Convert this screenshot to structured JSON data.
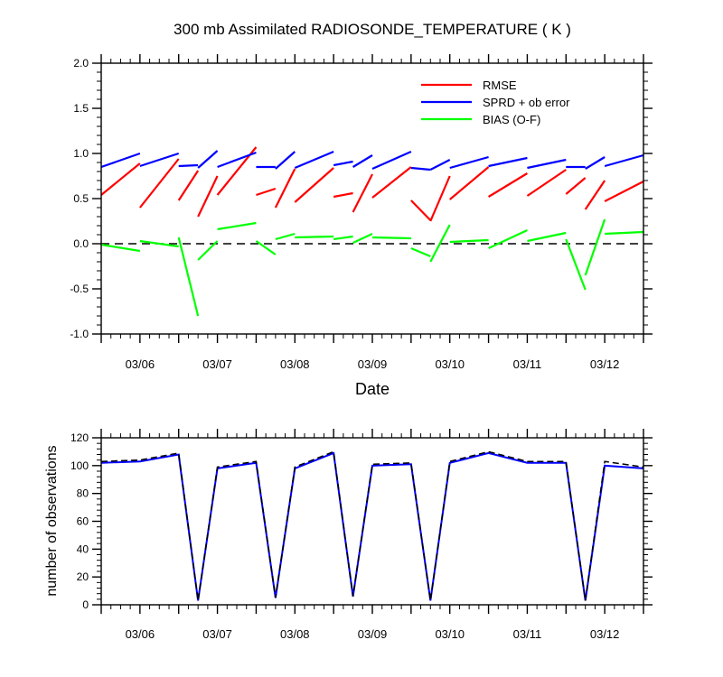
{
  "chart_data": [
    {
      "type": "line",
      "title": "300 mb Assimilated RADIOSONDE_TEMPERATURE ( K )",
      "xlabel": "Date",
      "ylabel": "",
      "xlim": [
        "03/05 12Z",
        "03/12 12Z"
      ],
      "ylim": [
        -1.0,
        2.0
      ],
      "yticks": [
        2.0,
        1.5,
        1.0,
        0.5,
        0.0,
        -0.5,
        -1.0
      ],
      "ytick_labels": [
        "2.0",
        "1.5",
        "1.0",
        "0.5",
        "0.0",
        "-0.5",
        "-1.0"
      ],
      "xtick_labels": [
        "03/06",
        "03/07",
        "03/08",
        "03/09",
        "03/10",
        "03/11",
        "03/12"
      ],
      "zero_line": {
        "y": 0.0,
        "style": "dashed",
        "color": "#000000"
      },
      "legend_position": "top-right",
      "series": [
        {
          "name": "RMSE",
          "color": "#ff0000",
          "segments": [
            {
              "x": [
                "03/05 12Z",
                "03/06 00Z"
              ],
              "y": [
                0.54,
                0.89
              ]
            },
            {
              "x": [
                "03/06 00Z",
                "03/06 12Z"
              ],
              "y": [
                0.4,
                0.94
              ]
            },
            {
              "x": [
                "03/06 12Z",
                "03/06 18Z"
              ],
              "y": [
                0.48,
                0.81
              ]
            },
            {
              "x": [
                "03/06 18Z",
                "03/07 00Z"
              ],
              "y": [
                0.3,
                0.75
              ]
            },
            {
              "x": [
                "03/07 00Z",
                "03/07 12Z"
              ],
              "y": [
                0.54,
                1.07
              ]
            },
            {
              "x": [
                "03/07 12Z",
                "03/07 18Z"
              ],
              "y": [
                0.54,
                0.61
              ]
            },
            {
              "x": [
                "03/07 18Z",
                "03/08 00Z"
              ],
              "y": [
                0.4,
                0.83
              ]
            },
            {
              "x": [
                "03/08 00Z",
                "03/08 12Z"
              ],
              "y": [
                0.46,
                0.84
              ]
            },
            {
              "x": [
                "03/08 12Z",
                "03/08 18Z"
              ],
              "y": [
                0.52,
                0.56
              ]
            },
            {
              "x": [
                "03/08 18Z",
                "03/09 00Z"
              ],
              "y": [
                0.35,
                0.77
              ]
            },
            {
              "x": [
                "03/09 00Z",
                "03/09 12Z"
              ],
              "y": [
                0.51,
                0.85
              ]
            },
            {
              "x": [
                "03/09 12Z",
                "03/09 18Z"
              ],
              "y": [
                0.48,
                0.26
              ]
            },
            {
              "x": [
                "03/09 18Z",
                "03/10 00Z"
              ],
              "y": [
                0.25,
                0.75
              ]
            },
            {
              "x": [
                "03/10 00Z",
                "03/10 12Z"
              ],
              "y": [
                0.49,
                0.85
              ]
            },
            {
              "x": [
                "03/10 12Z",
                "03/11 00Z"
              ],
              "y": [
                0.52,
                0.78
              ]
            },
            {
              "x": [
                "03/11 00Z",
                "03/11 12Z"
              ],
              "y": [
                0.53,
                0.82
              ]
            },
            {
              "x": [
                "03/11 12Z",
                "03/11 18Z"
              ],
              "y": [
                0.55,
                0.73
              ]
            },
            {
              "x": [
                "03/11 18Z",
                "03/12 00Z"
              ],
              "y": [
                0.38,
                0.7
              ]
            },
            {
              "x": [
                "03/12 00Z",
                "03/12 12Z"
              ],
              "y": [
                0.47,
                0.69
              ]
            }
          ]
        },
        {
          "name": "SPRD + ob error",
          "color": "#0000ff",
          "segments": [
            {
              "x": [
                "03/05 12Z",
                "03/06 00Z"
              ],
              "y": [
                0.85,
                1.0
              ]
            },
            {
              "x": [
                "03/06 00Z",
                "03/06 12Z"
              ],
              "y": [
                0.86,
                1.0
              ]
            },
            {
              "x": [
                "03/06 12Z",
                "03/06 18Z"
              ],
              "y": [
                0.86,
                0.87
              ]
            },
            {
              "x": [
                "03/06 18Z",
                "03/07 00Z"
              ],
              "y": [
                0.84,
                1.03
              ]
            },
            {
              "x": [
                "03/07 00Z",
                "03/07 12Z"
              ],
              "y": [
                0.85,
                1.01
              ]
            },
            {
              "x": [
                "03/07 12Z",
                "03/07 18Z"
              ],
              "y": [
                0.85,
                0.85
              ]
            },
            {
              "x": [
                "03/07 18Z",
                "03/08 00Z"
              ],
              "y": [
                0.83,
                1.02
              ]
            },
            {
              "x": [
                "03/08 00Z",
                "03/08 12Z"
              ],
              "y": [
                0.84,
                1.02
              ]
            },
            {
              "x": [
                "03/08 12Z",
                "03/08 18Z"
              ],
              "y": [
                0.87,
                0.91
              ]
            },
            {
              "x": [
                "03/08 18Z",
                "03/09 00Z"
              ],
              "y": [
                0.85,
                0.98
              ]
            },
            {
              "x": [
                "03/09 00Z",
                "03/09 12Z"
              ],
              "y": [
                0.83,
                1.02
              ]
            },
            {
              "x": [
                "03/09 12Z",
                "03/09 18Z"
              ],
              "y": [
                0.84,
                0.82
              ]
            },
            {
              "x": [
                "03/09 18Z",
                "03/10 00Z"
              ],
              "y": [
                0.82,
                0.93
              ]
            },
            {
              "x": [
                "03/10 00Z",
                "03/10 12Z"
              ],
              "y": [
                0.84,
                0.96
              ]
            },
            {
              "x": [
                "03/10 12Z",
                "03/11 00Z"
              ],
              "y": [
                0.86,
                0.95
              ]
            },
            {
              "x": [
                "03/11 00Z",
                "03/11 12Z"
              ],
              "y": [
                0.84,
                0.93
              ]
            },
            {
              "x": [
                "03/11 12Z",
                "03/11 18Z"
              ],
              "y": [
                0.85,
                0.85
              ]
            },
            {
              "x": [
                "03/11 18Z",
                "03/12 00Z"
              ],
              "y": [
                0.83,
                0.96
              ]
            },
            {
              "x": [
                "03/12 00Z",
                "03/12 12Z"
              ],
              "y": [
                0.86,
                0.98
              ]
            }
          ]
        },
        {
          "name": "BIAS (O-F)",
          "color": "#00ff00",
          "segments": [
            {
              "x": [
                "03/05 12Z",
                "03/06 00Z"
              ],
              "y": [
                -0.01,
                -0.08
              ]
            },
            {
              "x": [
                "03/06 00Z",
                "03/06 12Z"
              ],
              "y": [
                0.03,
                -0.03
              ]
            },
            {
              "x": [
                "03/06 12Z",
                "03/06 18Z"
              ],
              "y": [
                0.07,
                -0.8
              ]
            },
            {
              "x": [
                "03/06 18Z",
                "03/07 00Z"
              ],
              "y": [
                -0.18,
                0.03
              ]
            },
            {
              "x": [
                "03/07 00Z",
                "03/07 12Z"
              ],
              "y": [
                0.16,
                0.23
              ]
            },
            {
              "x": [
                "03/07 12Z",
                "03/07 18Z"
              ],
              "y": [
                0.03,
                -0.12
              ]
            },
            {
              "x": [
                "03/07 18Z",
                "03/08 00Z"
              ],
              "y": [
                0.05,
                0.11
              ]
            },
            {
              "x": [
                "03/08 00Z",
                "03/08 12Z"
              ],
              "y": [
                0.07,
                0.08
              ]
            },
            {
              "x": [
                "03/08 12Z",
                "03/08 18Z"
              ],
              "y": [
                0.05,
                0.08
              ]
            },
            {
              "x": [
                "03/08 18Z",
                "03/09 00Z"
              ],
              "y": [
                0.01,
                0.11
              ]
            },
            {
              "x": [
                "03/09 00Z",
                "03/09 12Z"
              ],
              "y": [
                0.07,
                0.06
              ]
            },
            {
              "x": [
                "03/09 12Z",
                "03/09 18Z"
              ],
              "y": [
                -0.05,
                -0.14
              ]
            },
            {
              "x": [
                "03/09 18Z",
                "03/10 00Z"
              ],
              "y": [
                -0.2,
                0.21
              ]
            },
            {
              "x": [
                "03/10 00Z",
                "03/10 12Z"
              ],
              "y": [
                0.02,
                0.04
              ]
            },
            {
              "x": [
                "03/10 12Z",
                "03/11 00Z"
              ],
              "y": [
                -0.05,
                0.15
              ]
            },
            {
              "x": [
                "03/11 00Z",
                "03/11 12Z"
              ],
              "y": [
                0.03,
                0.12
              ]
            },
            {
              "x": [
                "03/11 12Z",
                "03/11 18Z"
              ],
              "y": [
                0.05,
                -0.51
              ]
            },
            {
              "x": [
                "03/11 18Z",
                "03/12 00Z"
              ],
              "y": [
                -0.35,
                0.27
              ]
            },
            {
              "x": [
                "03/12 00Z",
                "03/12 12Z"
              ],
              "y": [
                0.11,
                0.13
              ]
            }
          ]
        }
      ]
    },
    {
      "type": "line",
      "title": "",
      "xlabel": "",
      "ylabel": "number of observations",
      "xlim": [
        "03/05 12Z",
        "03/12 12Z"
      ],
      "ylim": [
        0,
        120
      ],
      "yticks": [
        120,
        100,
        80,
        60,
        40,
        20,
        0
      ],
      "ytick_labels": [
        "120",
        "100",
        "80",
        "60",
        "40",
        "20",
        "0"
      ],
      "xtick_labels": [
        "03/06",
        "03/07",
        "03/08",
        "03/09",
        "03/10",
        "03/11",
        "03/12"
      ],
      "series": [
        {
          "color": "#0000ff",
          "style": "solid",
          "x": [
            "03/05 12Z",
            "03/06 00Z",
            "03/06 12Z",
            "03/06 18Z",
            "03/07 00Z",
            "03/07 12Z",
            "03/07 18Z",
            "03/08 00Z",
            "03/08 12Z",
            "03/08 18Z",
            "03/09 00Z",
            "03/09 12Z",
            "03/09 18Z",
            "03/10 00Z",
            "03/10 12Z",
            "03/11 00Z",
            "03/11 12Z",
            "03/11 18Z",
            "03/12 00Z",
            "03/12 12Z"
          ],
          "y": [
            102,
            103,
            108,
            3,
            98,
            102,
            5,
            98,
            109,
            6,
            100,
            101,
            3,
            102,
            109,
            102,
            102,
            3,
            100,
            98
          ]
        },
        {
          "color": "#000000",
          "style": "dashed",
          "x": [
            "03/05 12Z",
            "03/06 00Z",
            "03/06 12Z",
            "03/06 18Z",
            "03/07 00Z",
            "03/07 12Z",
            "03/07 18Z",
            "03/08 00Z",
            "03/08 12Z",
            "03/08 18Z",
            "03/09 00Z",
            "03/09 12Z",
            "03/09 18Z",
            "03/10 00Z",
            "03/10 12Z",
            "03/11 00Z",
            "03/11 12Z",
            "03/11 18Z",
            "03/12 00Z",
            "03/12 12Z"
          ],
          "y": [
            103,
            104,
            109,
            3,
            99,
            103,
            5,
            99,
            110,
            6,
            101,
            102,
            3,
            103,
            110,
            103,
            103,
            3,
            103,
            99
          ]
        }
      ]
    }
  ]
}
